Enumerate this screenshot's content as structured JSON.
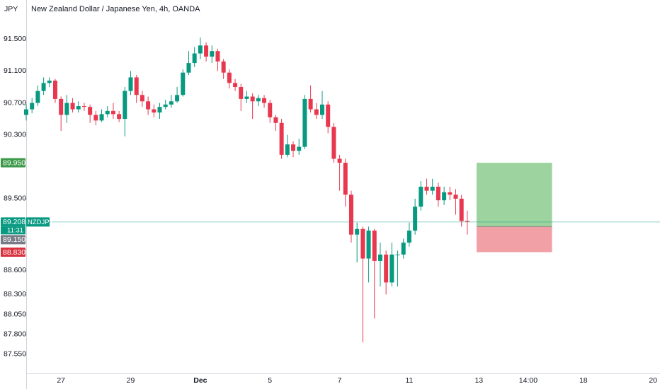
{
  "chart_data": {
    "type": "candlestick",
    "title": "New Zealand Dollar / Japanese Yen, 4h, OANDA",
    "currency": "JPY",
    "symbol": "NZDJPY",
    "countdown": "11:31",
    "colors": {
      "up": "#089981",
      "down": "#e8384f"
    },
    "grid": false,
    "ylim": [
      87.31,
      91.99
    ],
    "xlim": [
      0,
      109.2
    ],
    "yticks": [
      {
        "value": 91.5,
        "label": "91.500"
      },
      {
        "value": 91.1,
        "label": "91.100"
      },
      {
        "value": 90.7,
        "label": "90.700"
      },
      {
        "value": 90.3,
        "label": "90.300"
      },
      {
        "value": 89.5,
        "label": "89.500"
      },
      {
        "value": 88.6,
        "label": "88.600"
      },
      {
        "value": 88.3,
        "label": "88.300"
      },
      {
        "value": 88.05,
        "label": "88.050"
      },
      {
        "value": 87.8,
        "label": "87.800"
      },
      {
        "value": 87.55,
        "label": "87.550"
      }
    ],
    "xticks": [
      {
        "value": 6,
        "label": "27"
      },
      {
        "value": 18,
        "label": "29"
      },
      {
        "value": 30,
        "label": "Dec"
      },
      {
        "value": 42,
        "label": "5"
      },
      {
        "value": 54,
        "label": "7"
      },
      {
        "value": 66,
        "label": "11"
      },
      {
        "value": 78,
        "label": "13"
      },
      {
        "value": 86.5,
        "label": "14:00"
      },
      {
        "value": 96,
        "label": "18"
      },
      {
        "value": 108,
        "label": "20"
      }
    ],
    "open": [
      90.55,
      90.62,
      90.7,
      90.85,
      90.95,
      90.98,
      90.75,
      90.55,
      90.7,
      90.62,
      90.66,
      90.65,
      90.55,
      90.48,
      90.56,
      90.6,
      90.56,
      90.5,
      90.85,
      91.02,
      90.8,
      90.72,
      90.62,
      90.58,
      90.65,
      90.68,
      90.72,
      90.8,
      91.08,
      91.2,
      91.32,
      91.42,
      91.28,
      91.35,
      91.22,
      91.08,
      90.95,
      90.9,
      90.75,
      90.78,
      90.72,
      90.76,
      90.7,
      90.52,
      90.45,
      90.05,
      90.18,
      90.1,
      90.15,
      90.75,
      90.62,
      90.55,
      90.68,
      90.4,
      90.0,
      89.95,
      89.55,
      89.05,
      89.12,
      88.75,
      89.1,
      88.72,
      88.8,
      88.45,
      88.8,
      88.8,
      88.95,
      89.1,
      89.4,
      89.65,
      89.6,
      89.65,
      89.48,
      89.58,
      89.55,
      89.5,
      89.22
    ],
    "high": [
      90.68,
      90.76,
      90.92,
      91.02,
      91.02,
      91.0,
      90.78,
      90.8,
      90.76,
      90.72,
      90.7,
      90.68,
      90.6,
      90.62,
      90.66,
      90.7,
      90.6,
      90.9,
      91.1,
      91.05,
      90.85,
      90.78,
      90.68,
      90.7,
      90.74,
      90.8,
      90.9,
      91.12,
      91.35,
      91.4,
      91.52,
      91.46,
      91.42,
      91.38,
      91.25,
      91.12,
      91.0,
      90.94,
      90.85,
      90.82,
      90.8,
      90.8,
      90.74,
      90.55,
      90.5,
      90.3,
      90.22,
      90.25,
      90.8,
      90.92,
      90.7,
      90.85,
      90.72,
      90.45,
      90.05,
      90.0,
      89.6,
      89.2,
      89.15,
      89.15,
      89.12,
      88.95,
      88.85,
      88.95,
      88.85,
      89.0,
      89.2,
      89.5,
      89.72,
      89.75,
      89.75,
      89.7,
      89.65,
      89.65,
      89.62,
      89.55,
      89.35
    ],
    "low": [
      90.48,
      90.57,
      90.66,
      90.8,
      90.9,
      90.7,
      90.35,
      90.45,
      90.58,
      90.58,
      90.6,
      90.45,
      90.42,
      90.46,
      90.52,
      90.5,
      90.46,
      90.28,
      90.8,
      90.7,
      90.65,
      90.55,
      90.52,
      90.5,
      90.62,
      90.64,
      90.7,
      90.78,
      91.05,
      91.15,
      91.25,
      91.22,
      91.2,
      91.1,
      91.0,
      90.88,
      90.85,
      90.6,
      90.7,
      90.5,
      90.66,
      90.64,
      90.45,
      90.35,
      90.0,
      90.02,
      90.02,
      90.05,
      90.12,
      90.58,
      90.5,
      90.5,
      90.32,
      89.95,
      89.6,
      89.4,
      88.95,
      88.7,
      87.7,
      88.45,
      88.0,
      88.4,
      88.3,
      88.4,
      88.4,
      88.75,
      88.9,
      89.05,
      89.35,
      89.55,
      89.55,
      89.4,
      89.42,
      89.48,
      89.3,
      89.15,
      89.05
    ],
    "close": [
      90.62,
      90.7,
      90.85,
      90.95,
      90.98,
      90.75,
      90.55,
      90.7,
      90.62,
      90.66,
      90.65,
      90.55,
      90.48,
      90.56,
      90.6,
      90.56,
      90.5,
      90.85,
      91.02,
      90.8,
      90.72,
      90.62,
      90.58,
      90.65,
      90.68,
      90.72,
      90.8,
      91.08,
      91.2,
      91.32,
      91.42,
      91.28,
      91.35,
      91.22,
      91.08,
      90.95,
      90.9,
      90.75,
      90.78,
      90.72,
      90.76,
      90.7,
      90.52,
      90.45,
      90.05,
      90.18,
      90.1,
      90.15,
      90.75,
      90.62,
      90.55,
      90.68,
      90.4,
      90.0,
      89.95,
      89.55,
      89.05,
      89.12,
      88.75,
      89.1,
      88.72,
      88.8,
      88.45,
      88.8,
      88.8,
      88.95,
      89.1,
      89.4,
      89.65,
      89.6,
      89.65,
      89.48,
      89.58,
      89.55,
      89.5,
      89.22,
      89.21
    ],
    "last_price": {
      "value": 89.208,
      "label": "89.208"
    },
    "position": {
      "target": {
        "value": 89.95,
        "label": "89.950"
      },
      "entry": {
        "value": 89.15,
        "label": "89.150"
      },
      "stop": {
        "value": 88.83,
        "label": "88.830"
      },
      "x_start": 77.6,
      "x_end": 90.6
    }
  }
}
